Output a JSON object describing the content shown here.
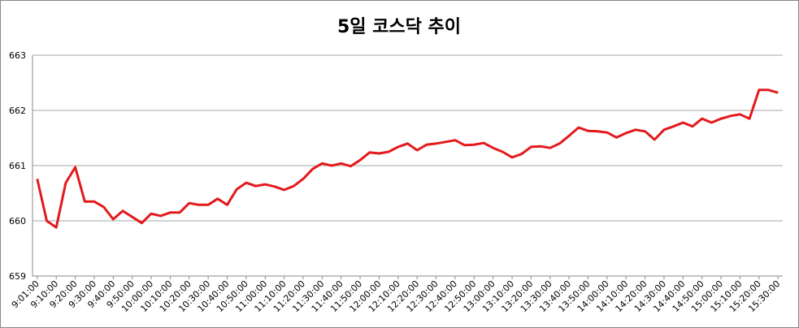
{
  "chart_data": {
    "type": "line",
    "title": "5일 코스닥 추이",
    "categories": [
      "9:01:00",
      null,
      "9:10:00",
      null,
      "9:20:00",
      null,
      "9:30:00",
      null,
      "9:40:00",
      null,
      "9:50:00",
      null,
      "10:00:00",
      null,
      "10:10:00",
      null,
      "10:20:00",
      null,
      "10:30:00",
      null,
      "10:40:00",
      null,
      "10:50:00",
      null,
      "11:00:00",
      null,
      "11:10:00",
      null,
      "11:20:00",
      null,
      "11:30:00",
      null,
      "11:40:00",
      null,
      "11:50:00",
      null,
      "12:00:00",
      null,
      "12:10:00",
      null,
      "12:20:00",
      null,
      "12:30:00",
      null,
      "12:40:00",
      null,
      "12:50:00",
      null,
      "13:00:00",
      null,
      "13:10:00",
      null,
      "13:20:00",
      null,
      "13:30:00",
      null,
      "13:40:00",
      null,
      "13:50:00",
      null,
      "14:00:00",
      null,
      "14:10:00",
      null,
      "14:20:00",
      null,
      "14:30:00",
      null,
      "14:40:00",
      null,
      "14:50:00",
      null,
      "15:00:00",
      null,
      "15:10:00",
      null,
      "15:20:00",
      null,
      "15:30:00"
    ],
    "values": [
      660.76,
      660.0,
      659.88,
      660.69,
      660.97,
      660.35,
      660.35,
      660.25,
      660.03,
      660.18,
      660.07,
      659.96,
      660.13,
      660.09,
      660.15,
      660.15,
      660.32,
      660.29,
      660.29,
      660.4,
      660.29,
      660.57,
      660.69,
      660.63,
      660.66,
      660.62,
      660.56,
      660.63,
      660.76,
      660.94,
      661.04,
      661.0,
      661.04,
      660.99,
      661.1,
      661.24,
      661.22,
      661.25,
      661.34,
      661.4,
      661.28,
      661.38,
      661.4,
      661.43,
      661.46,
      661.37,
      661.38,
      661.41,
      661.32,
      661.25,
      661.15,
      661.21,
      661.34,
      661.35,
      661.32,
      661.4,
      661.54,
      661.69,
      661.63,
      661.62,
      661.6,
      661.51,
      661.59,
      661.65,
      661.62,
      661.47,
      661.65,
      661.71,
      661.78,
      661.71,
      661.85,
      661.78,
      661.85,
      661.9,
      661.93,
      661.85,
      662.37,
      662.37,
      662.32
    ],
    "color": "#e3191c",
    "ylim": [
      659,
      663
    ],
    "yticks": [
      659,
      660,
      661,
      662,
      663
    ],
    "grid": true
  }
}
